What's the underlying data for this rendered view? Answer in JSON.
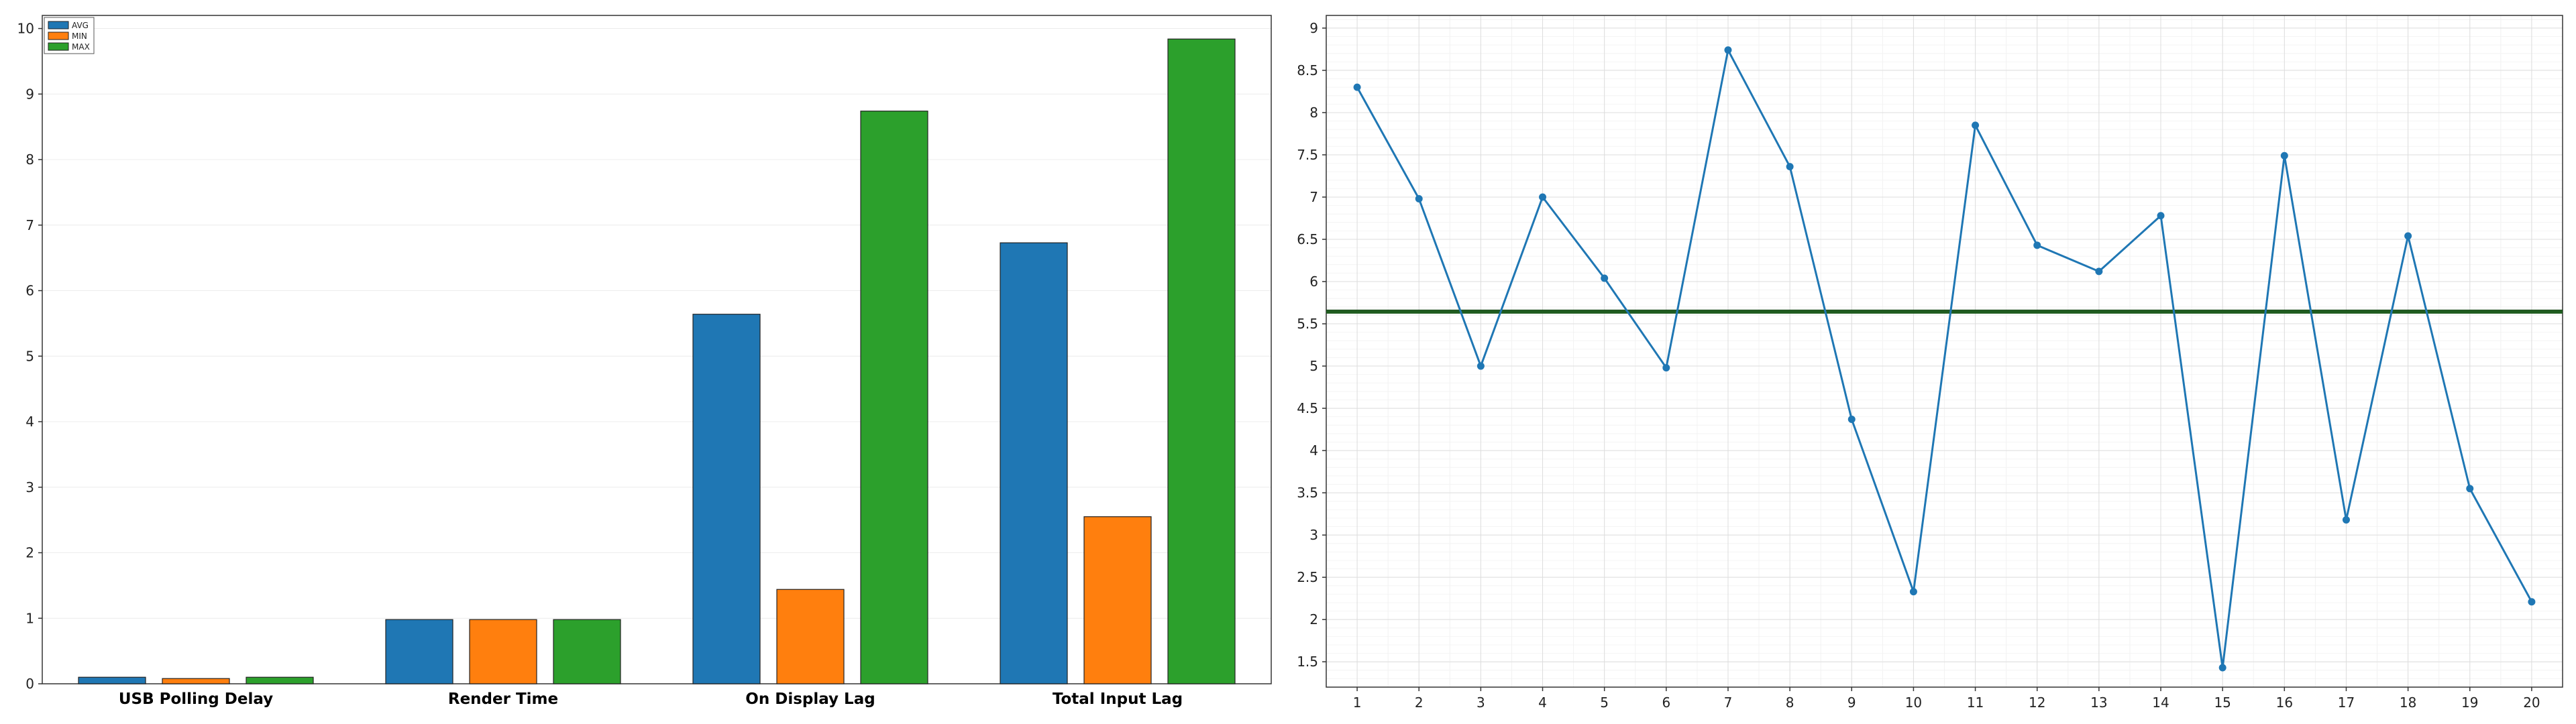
{
  "chart_data": [
    {
      "type": "bar",
      "categories": [
        "USB Polling Delay",
        "Render Time",
        "On Display Lag",
        "Total Input Lag"
      ],
      "series": [
        {
          "name": "AVG",
          "color": "#1f77b4",
          "values": [
            0.1,
            0.98,
            5.64,
            6.73
          ]
        },
        {
          "name": "MIN",
          "color": "#ff7f0e",
          "values": [
            0.08,
            0.98,
            1.44,
            2.55
          ]
        },
        {
          "name": "MAX",
          "color": "#2ca02c",
          "values": [
            0.1,
            0.98,
            8.74,
            9.84
          ]
        }
      ],
      "ylim": [
        0,
        10.2
      ],
      "yticks": [
        0,
        1,
        2,
        3,
        4,
        5,
        6,
        7,
        8,
        9,
        10
      ],
      "grid": true,
      "legend": "top-left"
    },
    {
      "type": "line",
      "x": [
        1,
        2,
        3,
        4,
        5,
        6,
        7,
        8,
        9,
        10,
        11,
        12,
        13,
        14,
        15,
        16,
        17,
        18,
        19,
        20
      ],
      "series": [
        {
          "color": "#1f77b4",
          "values": [
            8.3,
            6.98,
            5.0,
            7.0,
            6.04,
            4.98,
            8.74,
            7.36,
            4.37,
            2.33,
            7.85,
            6.43,
            6.12,
            6.78,
            1.43,
            7.49,
            3.18,
            6.54,
            3.55,
            2.21
          ]
        }
      ],
      "reference_line": {
        "value": 5.64,
        "color": "#1f5c1f"
      },
      "xlim": [
        0.5,
        20.5
      ],
      "ylim": [
        1.2,
        9.15
      ],
      "yticks": [
        "1.5",
        "2",
        "2.5",
        "3",
        "3.5",
        "4",
        "4.5",
        "5",
        "5.5",
        "6",
        "6.5",
        "7",
        "7.5",
        "8",
        "8.5",
        "9"
      ],
      "xticks": [
        "1",
        "2",
        "3",
        "4",
        "5",
        "6",
        "7",
        "8",
        "9",
        "10",
        "11",
        "12",
        "13",
        "14",
        "15",
        "16",
        "17",
        "18",
        "19",
        "20"
      ],
      "grid": true
    }
  ]
}
